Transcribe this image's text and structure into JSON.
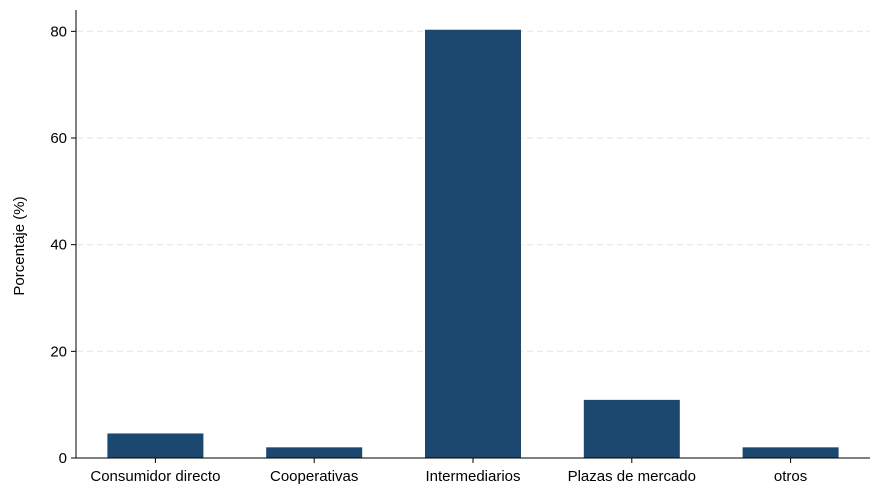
{
  "chart_data": {
    "type": "bar",
    "categories": [
      "Consumidor directo",
      "Cooperativas",
      "Intermediarios",
      "Plazas de mercado",
      "otros"
    ],
    "values": [
      4.6,
      2.0,
      80.3,
      10.9,
      2.0
    ],
    "title": "",
    "xlabel": "",
    "ylabel": "Porcentaje (%)",
    "ylim": [
      0,
      84
    ],
    "yticks": [
      0,
      20,
      40,
      60,
      80
    ],
    "grid": true,
    "legend": "none",
    "bar_color": "#1c476f",
    "grid_color": "#e8e8e8"
  }
}
